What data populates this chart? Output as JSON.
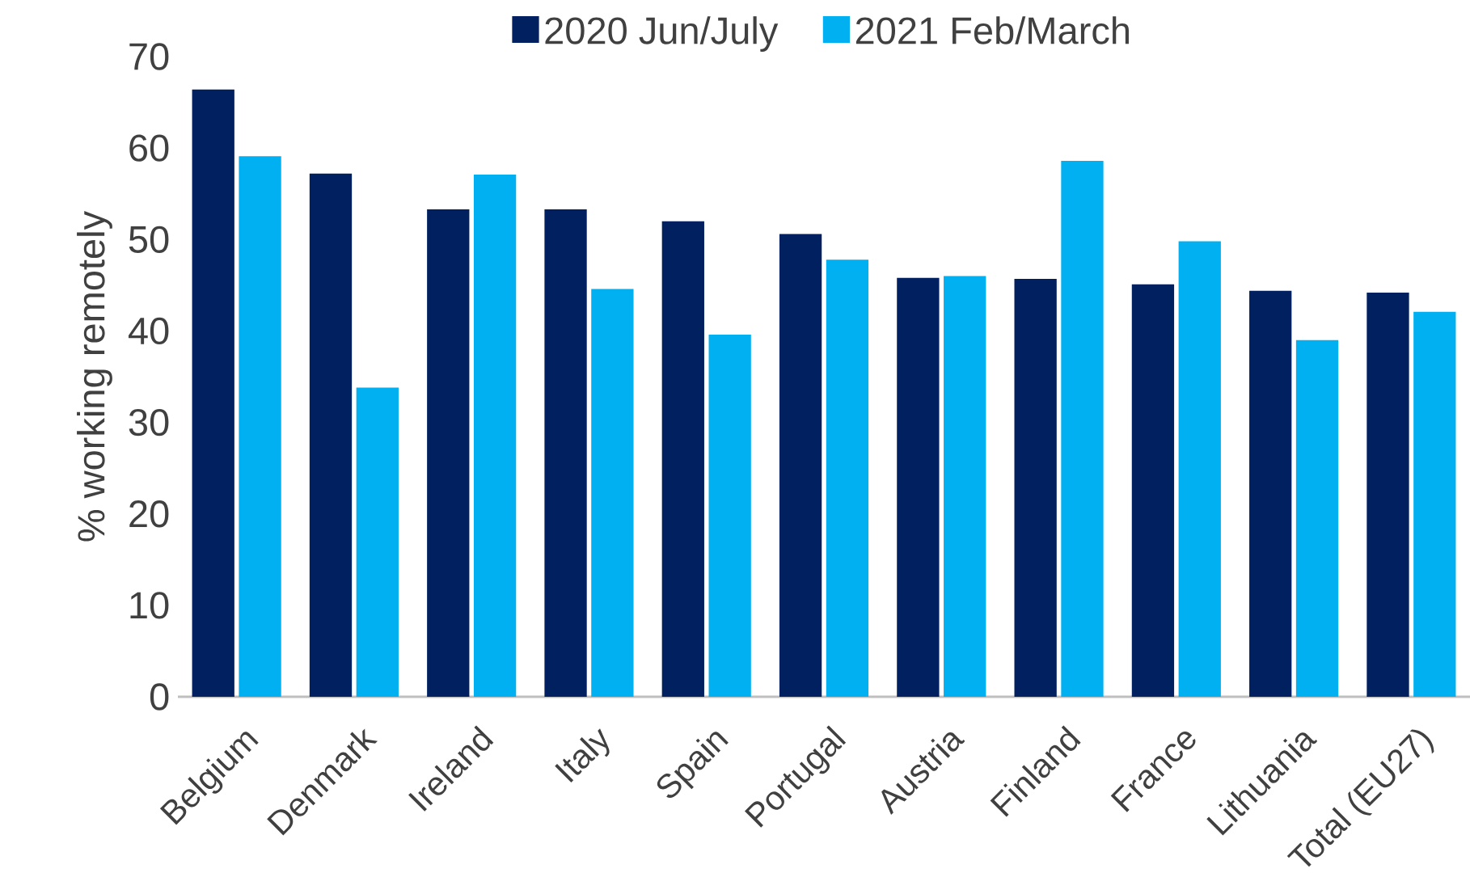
{
  "chart_data": {
    "type": "bar",
    "ylabel": "% working remotely",
    "categories": [
      "Belgium",
      "Denmark",
      "Ireland",
      "Italy",
      "Spain",
      "Portugal",
      "Austria",
      "Finland",
      "France",
      "Lithuania",
      "Total (EU27)"
    ],
    "series": [
      {
        "name": "2020 Jun/July",
        "color": "#002060",
        "values": [
          66.4,
          57.2,
          53.3,
          53.3,
          52.0,
          50.6,
          45.8,
          45.7,
          45.1,
          44.4,
          44.2
        ]
      },
      {
        "name": "2021 Feb/March",
        "color": "#00b0f0",
        "values": [
          59.1,
          33.8,
          57.1,
          44.6,
          39.6,
          47.8,
          46.0,
          58.6,
          49.8,
          39.0,
          42.1
        ]
      }
    ],
    "ylim": [
      0,
      70
    ],
    "yticks": [
      0,
      10,
      20,
      30,
      40,
      50,
      60,
      70
    ],
    "grid": false,
    "legend": "top"
  }
}
